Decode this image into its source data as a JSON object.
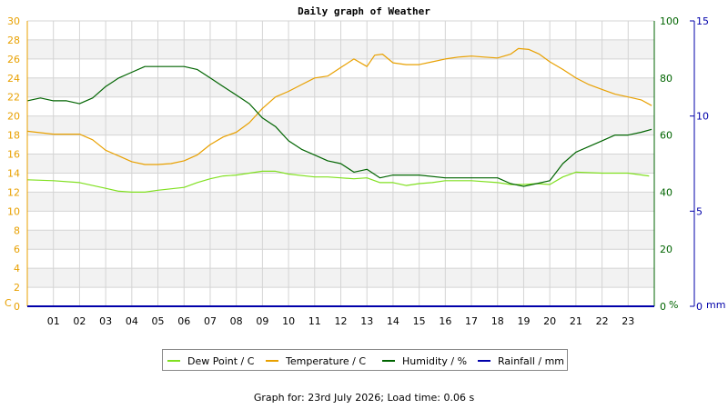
{
  "title": "Daily graph of Weather",
  "footer": {
    "prefix": "Graph for:",
    "date": "23rd July 2026;",
    "load_label": "Load time:",
    "load_value": "0.06 s"
  },
  "colors": {
    "dew_point": "#80e020",
    "temperature": "#e8a000",
    "humidity": "#006400",
    "rainfall": "#0000aa",
    "left_axis": "#e8a000",
    "humidity_axis": "#006400",
    "rain_axis": "#0000aa",
    "band": "#f2f2f2",
    "grid": "#d4d4d4"
  },
  "chart_data": {
    "type": "line",
    "title": "Daily graph of Weather",
    "x_ticks": [
      "01",
      "02",
      "03",
      "04",
      "05",
      "06",
      "07",
      "08",
      "09",
      "10",
      "11",
      "12",
      "13",
      "14",
      "15",
      "16",
      "17",
      "18",
      "19",
      "20",
      "21",
      "22",
      "23"
    ],
    "xlim": [
      0,
      24
    ],
    "axes": {
      "left": {
        "unit": "C",
        "ylim": [
          0,
          30
        ],
        "ticks": [
          "0",
          "2",
          "4",
          "6",
          "8",
          "10",
          "12",
          "14",
          "16",
          "18",
          "20",
          "22",
          "24",
          "26",
          "28",
          "30"
        ]
      },
      "humidity": {
        "unit": "%",
        "ylim": [
          0,
          100
        ],
        "ticks": [
          "0",
          "20",
          "40",
          "60",
          "80",
          "100"
        ]
      },
      "rain": {
        "unit": "mm",
        "ylim": [
          0,
          15
        ],
        "ticks": [
          "0",
          "5",
          "10",
          "15"
        ]
      }
    },
    "grid": true,
    "legend_position": "bottom",
    "series": [
      {
        "name": "Dew Point / C",
        "axis": "left",
        "x": [
          0,
          1,
          2,
          3,
          3.5,
          4,
          4.5,
          5,
          6,
          6.5,
          7,
          7.5,
          8,
          8.5,
          9,
          9.5,
          10,
          11,
          11.5,
          12,
          12.5,
          13,
          13.5,
          14,
          14.5,
          15,
          15.5,
          16,
          17,
          18,
          18.5,
          19,
          19.5,
          20,
          20.5,
          21,
          22,
          23,
          23.8
        ],
        "y": [
          13.3,
          13.2,
          13.0,
          12.4,
          12.1,
          12.0,
          12.0,
          12.2,
          12.5,
          13.0,
          13.4,
          13.7,
          13.8,
          14.0,
          14.2,
          14.2,
          13.9,
          13.6,
          13.6,
          13.5,
          13.4,
          13.5,
          13.0,
          13.0,
          12.7,
          12.9,
          13.0,
          13.2,
          13.2,
          13.0,
          12.8,
          12.8,
          12.9,
          12.8,
          13.6,
          14.1,
          14.0,
          14.0,
          13.7
        ]
      },
      {
        "name": "Temperature / C",
        "axis": "left",
        "x": [
          0,
          1,
          2,
          2.5,
          3,
          3.5,
          4,
          4.5,
          5,
          5.5,
          6,
          6.5,
          7,
          7.5,
          8,
          8.5,
          9,
          9.5,
          10,
          10.5,
          11,
          11.5,
          12,
          12.5,
          13,
          13.3,
          13.6,
          14,
          14.5,
          15,
          15.5,
          16,
          16.5,
          17,
          17.5,
          18,
          18.5,
          18.8,
          19.2,
          19.6,
          20,
          20.5,
          21,
          21.5,
          22,
          22.5,
          23,
          23.5,
          23.9
        ],
        "y": [
          18.4,
          18.1,
          18.1,
          17.5,
          16.4,
          15.8,
          15.2,
          14.9,
          14.9,
          15.0,
          15.3,
          15.9,
          17.0,
          17.8,
          18.3,
          19.3,
          20.8,
          22.0,
          22.6,
          23.3,
          24.0,
          24.2,
          25.1,
          26.0,
          25.2,
          26.4,
          26.5,
          25.6,
          25.4,
          25.4,
          25.7,
          26.0,
          26.2,
          26.3,
          26.2,
          26.1,
          26.5,
          27.1,
          27.0,
          26.5,
          25.7,
          24.9,
          24.0,
          23.3,
          22.8,
          22.3,
          22.0,
          21.7,
          21.1
        ]
      },
      {
        "name": "Humidity / %",
        "axis": "humidity",
        "x": [
          0,
          0.5,
          1,
          1.5,
          2,
          2.5,
          3,
          3.5,
          4,
          4.5,
          5,
          5.5,
          6,
          6.5,
          7,
          7.5,
          8,
          8.5,
          9,
          9.5,
          10,
          10.5,
          11,
          11.5,
          12,
          12.5,
          13,
          13.5,
          14,
          14.5,
          15,
          16,
          17,
          18,
          18.5,
          19,
          19.5,
          20,
          20.5,
          21,
          21.5,
          22,
          22.5,
          23,
          23.5,
          23.9
        ],
        "y": [
          72,
          73,
          72,
          72,
          71,
          73,
          77,
          80,
          82,
          84,
          84,
          84,
          84,
          83,
          80,
          77,
          74,
          71,
          66,
          63,
          58,
          55,
          53,
          51,
          50,
          47,
          48,
          45,
          46,
          46,
          46,
          45,
          45,
          45,
          43,
          42,
          43,
          44,
          50,
          54,
          56,
          58,
          60,
          60,
          61,
          62
        ]
      },
      {
        "name": "Rainfall / mm",
        "axis": "rain",
        "x": [
          0,
          24
        ],
        "y": [
          0,
          0
        ]
      }
    ]
  }
}
